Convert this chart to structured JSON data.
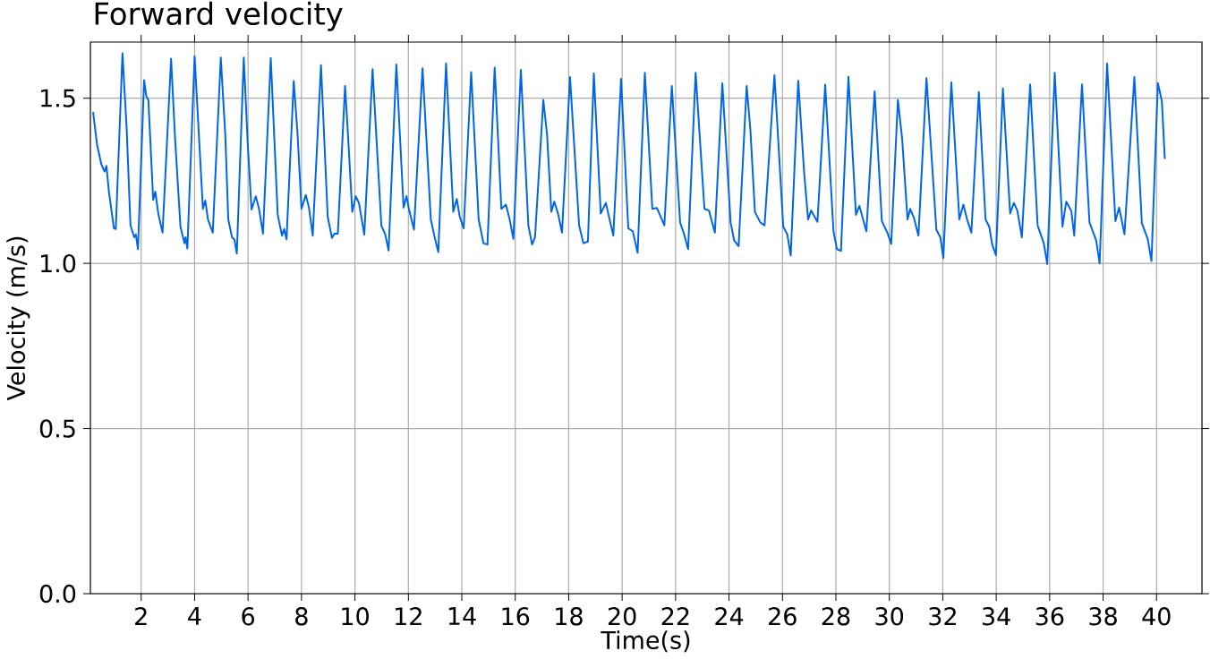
{
  "chart_data": {
    "type": "line",
    "title": "Forward velocity",
    "xlabel": "Time(s)",
    "ylabel": "Velocity (m/s)",
    "xlim": [
      0.1,
      41.7
    ],
    "ylim": [
      0,
      1.67
    ],
    "xticks": [
      2,
      4,
      6,
      8,
      10,
      12,
      14,
      16,
      18,
      20,
      22,
      24,
      26,
      28,
      30,
      32,
      34,
      36,
      38,
      40
    ],
    "yticks": [
      {
        "value": 0,
        "label": "0.0"
      },
      {
        "value": 0.5,
        "label": "0.5"
      },
      {
        "value": 1.0,
        "label": "1.0"
      },
      {
        "value": 1.5,
        "label": "1.5"
      }
    ],
    "grid": true,
    "color": "#0066e6",
    "x": [
      0.2,
      0.35,
      0.51,
      0.63,
      0.7,
      0.79,
      0.98,
      1.05,
      1.3,
      1.46,
      1.6,
      1.74,
      1.8,
      1.88,
      2.11,
      2.19,
      2.27,
      2.45,
      2.53,
      2.64,
      2.8,
      3.12,
      3.27,
      3.47,
      3.62,
      3.66,
      3.73,
      4.0,
      4.15,
      4.31,
      4.4,
      4.5,
      4.68,
      4.98,
      5.15,
      5.26,
      5.4,
      5.49,
      5.58,
      5.84,
      5.99,
      6.13,
      6.29,
      6.41,
      6.56,
      6.85,
      7.11,
      7.27,
      7.35,
      7.44,
      7.71,
      7.85,
      8.0,
      8.16,
      8.28,
      8.42,
      8.73,
      8.98,
      9.14,
      9.23,
      9.36,
      9.63,
      9.73,
      9.9,
      10.03,
      10.15,
      10.35,
      10.66,
      10.99,
      11.13,
      11.26,
      11.55,
      11.82,
      11.93,
      12.02,
      12.21,
      12.53,
      12.84,
      12.97,
      13.12,
      13.41,
      13.68,
      13.81,
      13.92,
      14.07,
      14.35,
      14.63,
      14.81,
      14.96,
      15.23,
      15.48,
      15.65,
      15.79,
      15.93,
      16.21,
      16.49,
      16.63,
      16.74,
      17.05,
      17.19,
      17.35,
      17.46,
      17.6,
      17.75,
      18.05,
      18.39,
      18.55,
      18.72,
      18.94,
      19.2,
      19.39,
      19.67,
      19.96,
      20.23,
      20.4,
      20.58,
      20.85,
      21.13,
      21.3,
      21.58,
      21.86,
      22.17,
      22.32,
      22.47,
      22.75,
      22.91,
      23.08,
      23.25,
      23.47,
      23.75,
      24.06,
      24.19,
      24.36,
      24.66,
      24.8,
      24.97,
      25.17,
      25.33,
      25.7,
      26.03,
      26.18,
      26.31,
      26.59,
      26.81,
      26.96,
      27.07,
      27.31,
      27.6,
      27.91,
      28.04,
      28.19,
      28.47,
      28.75,
      28.88,
      29.14,
      29.45,
      29.72,
      29.93,
      30.07,
      30.32,
      30.48,
      30.68,
      30.78,
      30.92,
      31.09,
      31.39,
      31.76,
      31.91,
      32.02,
      32.32,
      32.62,
      32.77,
      32.91,
      33.07,
      33.35,
      33.6,
      33.74,
      33.85,
      33.99,
      34.25,
      34.52,
      34.66,
      34.79,
      34.96,
      35.27,
      35.55,
      35.78,
      35.91,
      36.19,
      36.34,
      36.48,
      36.62,
      36.81,
      36.92,
      37.21,
      37.49,
      37.74,
      37.87,
      38.15,
      38.46,
      38.6,
      38.8,
      39.17,
      39.45,
      39.67,
      39.81,
      40.05,
      40.2,
      40.31
    ],
    "values": [
      1.458,
      1.359,
      1.3,
      1.278,
      1.295,
      1.219,
      1.106,
      1.104,
      1.636,
      1.404,
      1.115,
      1.079,
      1.088,
      1.043,
      1.555,
      1.507,
      1.494,
      1.192,
      1.217,
      1.151,
      1.093,
      1.62,
      1.377,
      1.111,
      1.061,
      1.079,
      1.045,
      1.627,
      1.404,
      1.165,
      1.19,
      1.133,
      1.093,
      1.623,
      1.386,
      1.133,
      1.079,
      1.072,
      1.03,
      1.623,
      1.359,
      1.163,
      1.203,
      1.165,
      1.09,
      1.622,
      1.147,
      1.084,
      1.104,
      1.073,
      1.552,
      1.395,
      1.165,
      1.207,
      1.169,
      1.084,
      1.6,
      1.142,
      1.077,
      1.09,
      1.09,
      1.537,
      1.404,
      1.156,
      1.203,
      1.183,
      1.087,
      1.588,
      1.114,
      1.089,
      1.039,
      1.602,
      1.169,
      1.204,
      1.165,
      1.102,
      1.591,
      1.133,
      1.084,
      1.034,
      1.605,
      1.156,
      1.195,
      1.142,
      1.106,
      1.579,
      1.133,
      1.061,
      1.057,
      1.593,
      1.165,
      1.178,
      1.133,
      1.074,
      1.586,
      1.115,
      1.057,
      1.079,
      1.495,
      1.39,
      1.156,
      1.187,
      1.151,
      1.093,
      1.564,
      1.115,
      1.061,
      1.066,
      1.575,
      1.151,
      1.183,
      1.084,
      1.559,
      1.106,
      1.097,
      1.032,
      1.577,
      1.165,
      1.168,
      1.115,
      1.537,
      1.124,
      1.088,
      1.043,
      1.577,
      1.377,
      1.165,
      1.16,
      1.093,
      1.545,
      1.124,
      1.07,
      1.052,
      1.537,
      1.404,
      1.156,
      1.124,
      1.115,
      1.57,
      1.111,
      1.088,
      1.024,
      1.553,
      1.277,
      1.133,
      1.16,
      1.126,
      1.541,
      1.097,
      1.043,
      1.038,
      1.565,
      1.147,
      1.174,
      1.097,
      1.521,
      1.128,
      1.092,
      1.059,
      1.495,
      1.377,
      1.133,
      1.165,
      1.138,
      1.084,
      1.561,
      1.102,
      1.079,
      1.016,
      1.548,
      1.133,
      1.178,
      1.133,
      1.093,
      1.519,
      1.133,
      1.111,
      1.057,
      1.025,
      1.53,
      1.151,
      1.183,
      1.16,
      1.079,
      1.542,
      1.115,
      1.061,
      0.998,
      1.577,
      1.332,
      1.111,
      1.187,
      1.159,
      1.084,
      1.542,
      1.124,
      1.07,
      1.0,
      1.605,
      1.128,
      1.169,
      1.088,
      1.564,
      1.122,
      1.074,
      1.007,
      1.546,
      1.491,
      1.316
    ]
  }
}
